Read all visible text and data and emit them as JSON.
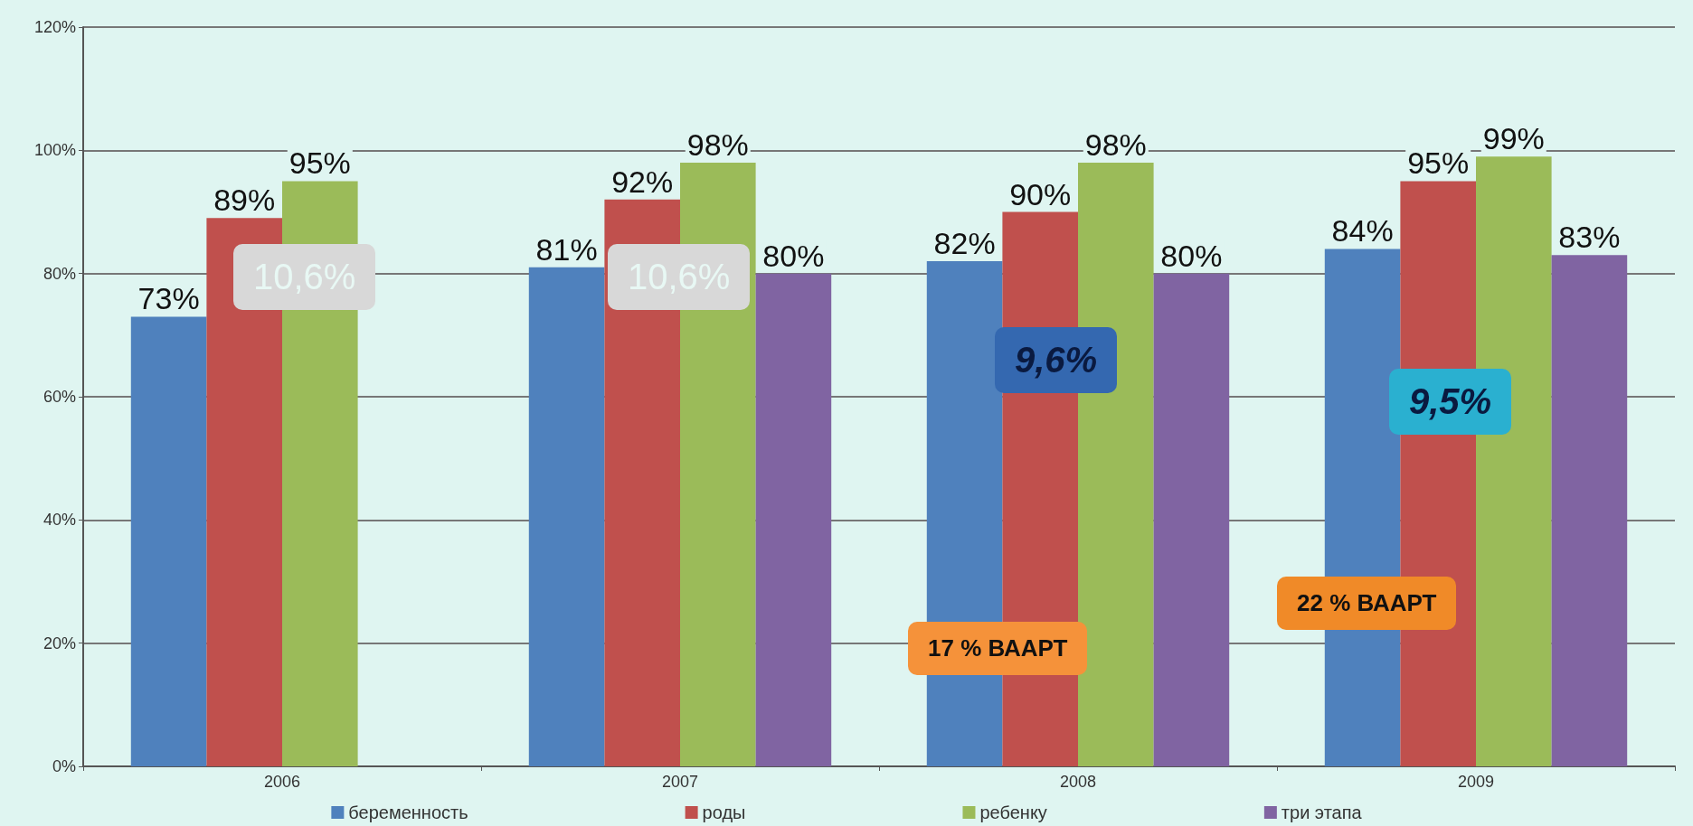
{
  "chart_data": {
    "type": "bar",
    "categories": [
      "2006",
      "2007",
      "2008",
      "2009"
    ],
    "series": [
      {
        "name": "беременность",
        "color": "#4f81bd",
        "values": [
          73,
          81,
          82,
          84
        ],
        "value_labels": [
          "73%",
          "81%",
          "82%",
          "84%"
        ]
      },
      {
        "name": "роды",
        "color": "#c0504d",
        "values": [
          89,
          92,
          90,
          95
        ],
        "value_labels": [
          "89%",
          "92%",
          "90%",
          "95%"
        ]
      },
      {
        "name": "ребенку",
        "color": "#9bbb59",
        "values": [
          95,
          98,
          98,
          99
        ],
        "value_labels": [
          "95%",
          "98%",
          "98%",
          "99%"
        ]
      },
      {
        "name": "три этапа",
        "color": "#8064a2",
        "values": [
          null,
          80,
          80,
          83
        ],
        "value_labels": [
          null,
          "80%",
          "80%",
          "83%"
        ]
      }
    ],
    "ylim": [
      0,
      120
    ],
    "yticks": [
      {
        "value": 0,
        "label": "0%"
      },
      {
        "value": 20,
        "label": "20%"
      },
      {
        "value": 40,
        "label": "40%"
      },
      {
        "value": 60,
        "label": "60%"
      },
      {
        "value": 80,
        "label": "80%"
      },
      {
        "value": 100,
        "label": "100%"
      },
      {
        "value": 120,
        "label": "120%"
      }
    ],
    "grid": "y",
    "legend": "bottom",
    "annotations": [
      "10,6%",
      "10,6%",
      "9,6%",
      "9,5%",
      "17 % ВААРТ",
      "22 % ВААРТ"
    ]
  }
}
